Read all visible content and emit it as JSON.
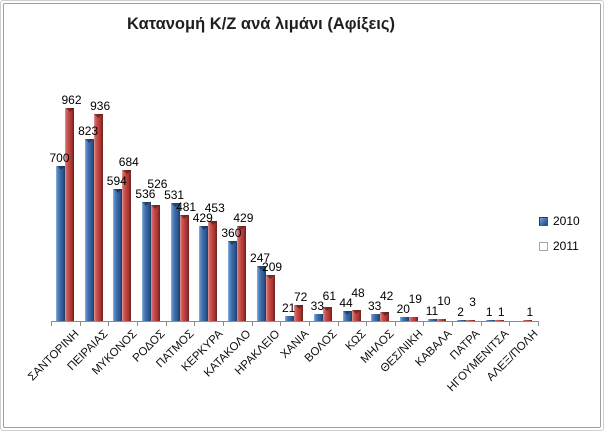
{
  "window": {
    "title": "Κατανομή Κ/Ζ ανά λιμάνι (Αφίξεις)"
  },
  "legend": {
    "position": "right",
    "entries": [
      {
        "label": "2010",
        "color": "#3a6aab"
      },
      {
        "label": "2011",
        "color": "#c24340"
      }
    ]
  },
  "chart_data": {
    "type": "bar",
    "title": "Κατανομή Κ/Ζ ανά λιμάνι (Αφίξεις)",
    "categories": [
      "ΣΑΝΤΟΡΙΝΗ",
      "ΠΕΙΡΑΙΑΣ",
      "ΜΥΚΟΝΟΣ",
      "ΡΟΔΟΣ",
      "ΠΑΤΜΟΣ",
      "ΚΕΡΚΥΡΑ",
      "ΚΑΤΑΚΟΛΟ",
      "ΗΡΑΚΛΕΙΟ",
      "ΧΑΝΙΑ",
      "ΒΟΛΟΣ",
      "ΚΩΣ",
      "ΜΗΛΟΣ",
      "ΘΕΣ/ΝΙΚΗ",
      "ΚΑΒΑΛΑ",
      "ΠΑΤΡΑ",
      "ΗΓΟΥΜΕΝΙΤΣΑ",
      "ΑΛΕΞ/ΠΟΛΗ"
    ],
    "series": [
      {
        "name": "2010",
        "color": "#3a6aab",
        "values": [
          700,
          823,
          594,
          536,
          531,
          429,
          360,
          247,
          21,
          33,
          44,
          33,
          20,
          11,
          2,
          1,
          null
        ]
      },
      {
        "name": "2011",
        "color": "#c24340",
        "values": [
          962,
          936,
          684,
          526,
          481,
          453,
          429,
          209,
          72,
          61,
          48,
          42,
          19,
          10,
          3,
          1,
          1
        ]
      }
    ],
    "value_labels": true,
    "xlabel": "",
    "ylabel": "",
    "y_axis_visible": false,
    "gridlines": false,
    "legend_position": "right",
    "ylim": [
      0,
      1000
    ]
  }
}
